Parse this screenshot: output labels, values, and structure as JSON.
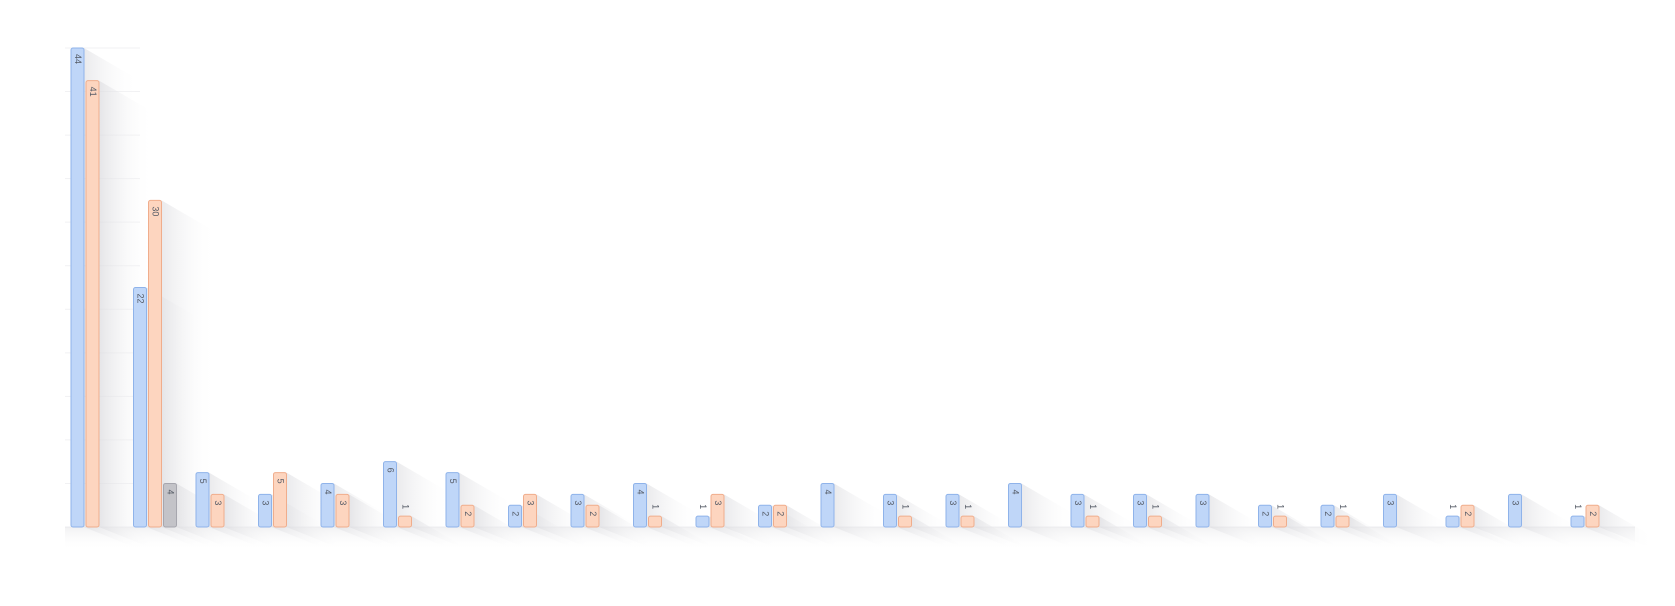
{
  "chart_data": {
    "type": "bar",
    "orientation": "vertical",
    "title": "",
    "xlabel": "",
    "ylabel": "",
    "grid": true,
    "legend": "none",
    "ylim": [
      0,
      44
    ],
    "colors": [
      "#bfd6f8",
      "#fdd5bf",
      "#c3c3c8"
    ],
    "stroke_colors": [
      "#8fb3ea",
      "#f0ad8c",
      "#a6a6ae"
    ],
    "categories": [
      "",
      "",
      "",
      "",
      "",
      "",
      "",
      "",
      "",
      "",
      "",
      "",
      "",
      "",
      "",
      "",
      "",
      "",
      "",
      "",
      "",
      "",
      "",
      "",
      "",
      ""
    ],
    "series": [
      {
        "values": [
          44,
          22,
          5,
          3,
          4,
          6,
          5,
          2,
          3,
          4,
          1,
          2,
          4,
          3,
          3,
          4,
          3,
          3,
          3,
          2,
          2,
          3,
          1,
          3,
          1,
          null
        ]
      },
      {
        "values": [
          41,
          30,
          3,
          5,
          3,
          1,
          2,
          3,
          2,
          1,
          3,
          2,
          null,
          1,
          1,
          null,
          1,
          1,
          null,
          1,
          1,
          null,
          2,
          null,
          2,
          null
        ]
      },
      {
        "values": [
          null,
          4,
          null,
          null,
          null,
          null,
          null,
          null,
          null,
          null,
          null,
          null,
          null,
          null,
          null,
          null,
          null,
          null,
          null,
          null,
          null,
          null,
          null,
          null,
          null,
          null
        ]
      }
    ]
  }
}
